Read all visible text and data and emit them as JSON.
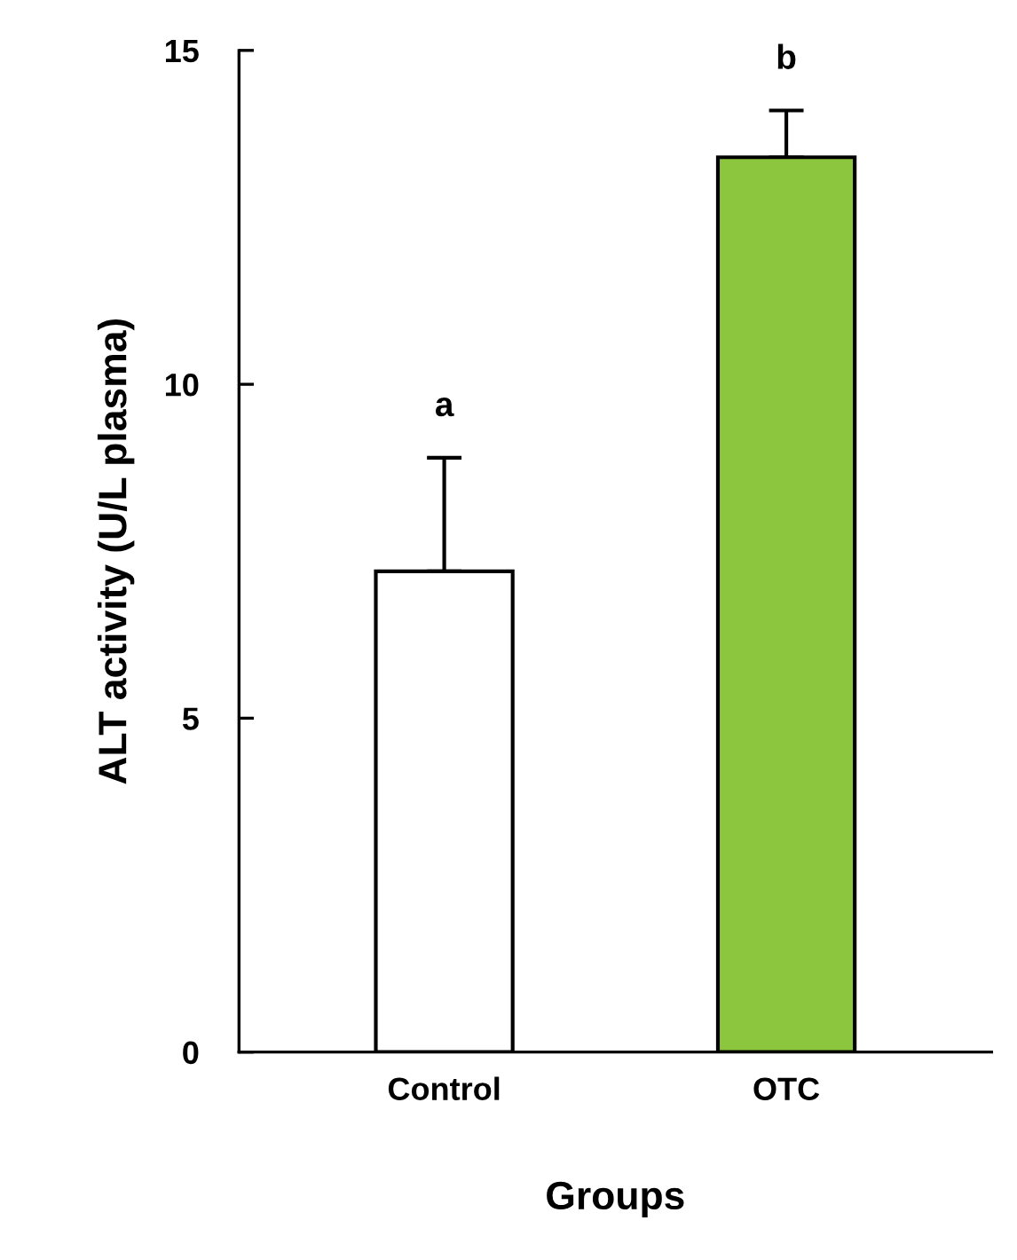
{
  "chart_data": {
    "type": "bar",
    "xlabel": "Groups",
    "ylabel": "ALT activity (U/L plasma)",
    "categories": [
      "Control",
      "OTC"
    ],
    "values": [
      7.2,
      13.4
    ],
    "colors": [
      "#ffffff",
      "#8cc63f"
    ],
    "errors": [
      [
        7.2,
        8.9
      ],
      [
        13.4,
        14.1
      ]
    ],
    "ylim": [
      0,
      15
    ],
    "yticks": [
      0,
      5,
      10,
      15
    ],
    "grid": false,
    "annotations": [
      {
        "text": "a",
        "x": "Control",
        "y": 8.9
      },
      {
        "text": "b",
        "x": "OTC",
        "y": 14.1
      }
    ]
  }
}
